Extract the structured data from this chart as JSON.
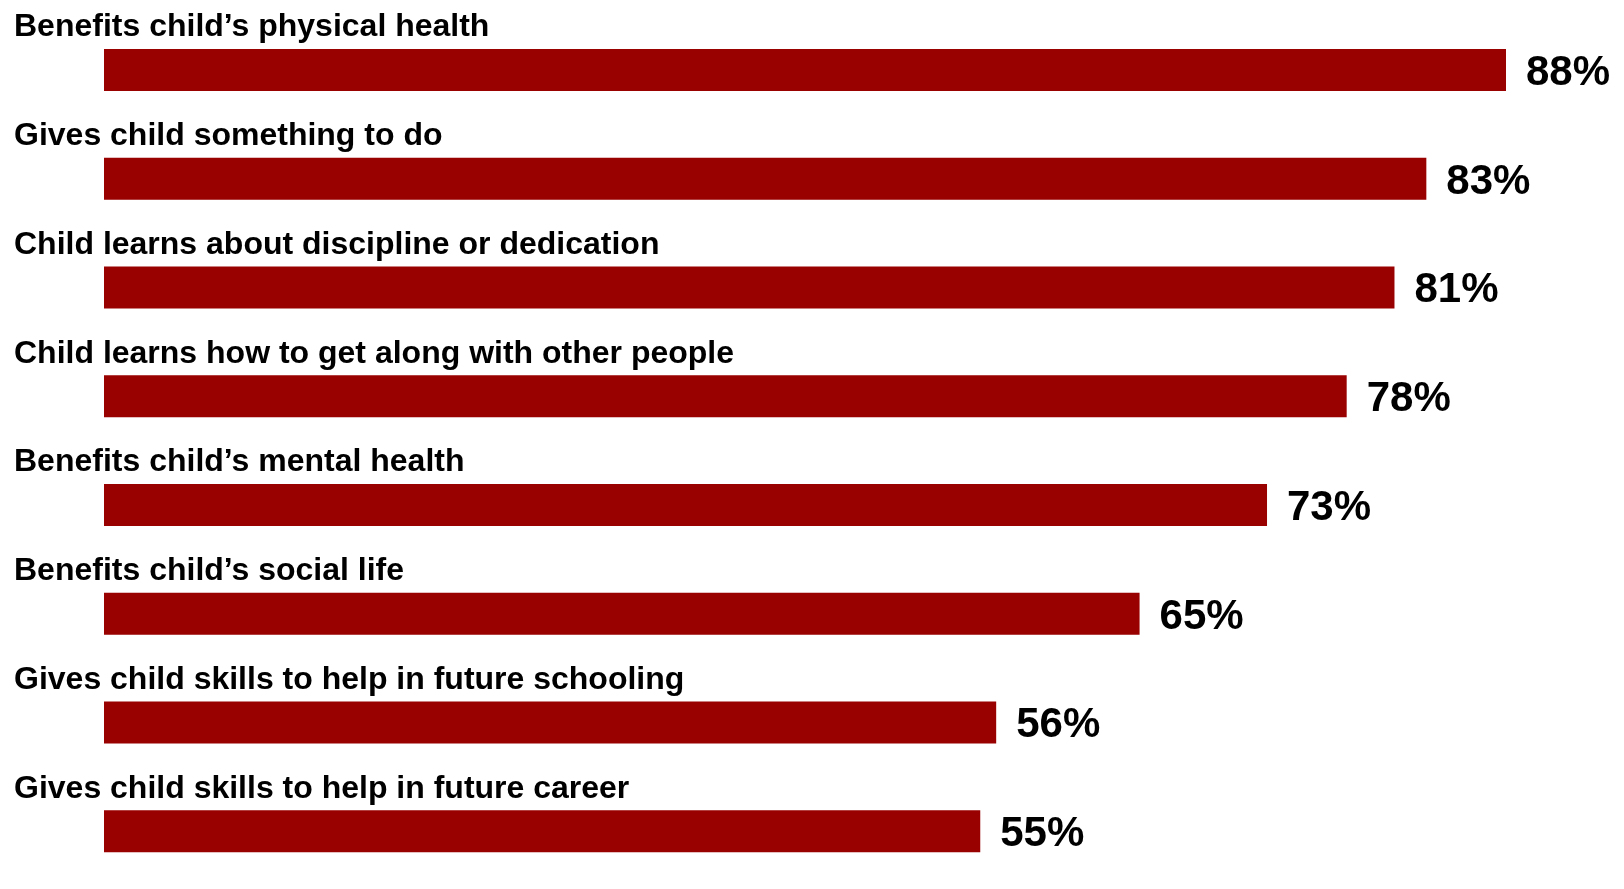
{
  "chart_data": {
    "type": "bar",
    "orientation": "horizontal",
    "categories": [
      "Benefits child’s physical health",
      "Gives child something to do",
      "Child learns about discipline or dedication",
      "Child learns how to get along with other people",
      "Benefits child’s mental health",
      "Benefits child’s social life",
      "Gives child skills to help in future schooling",
      "Gives child skills to help in future career"
    ],
    "values": [
      88,
      83,
      81,
      78,
      73,
      65,
      56,
      55
    ],
    "value_labels": [
      "88%",
      "83%",
      "81%",
      "78%",
      "73%",
      "65%",
      "56%",
      "55%"
    ],
    "color": "#990000"
  }
}
